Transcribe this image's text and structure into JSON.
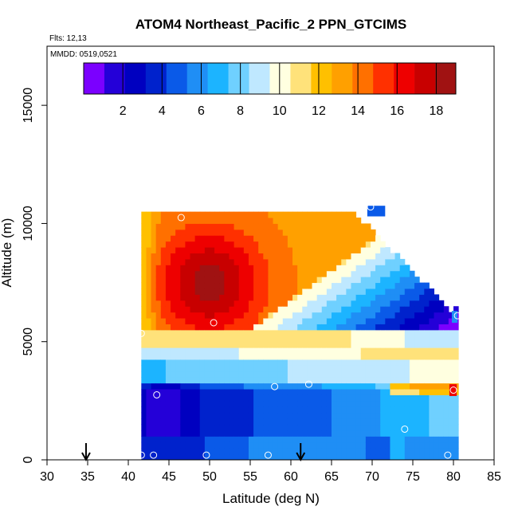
{
  "chart_data": {
    "type": "heatmap",
    "title": "ATOM4 Northeast_Pacific_2 PPN_GTCIMS",
    "flights_label": "Flts: 12,13",
    "dates_label": "MMDD: 0519,0521",
    "xlabel": "Latitude (deg N)",
    "ylabel": "Altitude (m)",
    "xlim": [
      30,
      85
    ],
    "ylim": [
      0,
      17500
    ],
    "x_ticks": [
      30,
      35,
      40,
      45,
      50,
      55,
      60,
      65,
      70,
      75,
      80,
      85
    ],
    "y_ticks": [
      0,
      5000,
      10000,
      15000
    ],
    "colorbar": {
      "range": [
        0,
        19
      ],
      "ticks": [
        2,
        4,
        6,
        8,
        10,
        12,
        14,
        16,
        18
      ],
      "colors": [
        "#7b00ff",
        "#2400d8",
        "#0000c0",
        "#0022cc",
        "#0a5ae8",
        "#1f8ef5",
        "#1cb4ff",
        "#6fd0ff",
        "#bfe8ff",
        "#ffffe0",
        "#ffe27a",
        "#ffc000",
        "#ffa000",
        "#ff7000",
        "#ff3000",
        "#ee0000",
        "#c80000",
        "#a01212"
      ]
    },
    "profile_latitudes": [
      41.6,
      80.0
    ],
    "field_description": "Altitude-latitude curtain, lat 41.5-80.5, alt 0-10500 m; low values near surface and 2-3 km at 42-60N, high values (15-18) aloft 5.5-10 km near 45-55N",
    "markers": [
      {
        "lat": 34.8,
        "label": "arrow"
      },
      {
        "lat": 61.2,
        "label": "arrow"
      }
    ],
    "sample_points": [
      {
        "lat": 41.6,
        "alt": 200
      },
      {
        "lat": 43.1,
        "alt": 200
      },
      {
        "lat": 49.6,
        "alt": 200
      },
      {
        "lat": 57.2,
        "alt": 200
      },
      {
        "lat": 79.3,
        "alt": 200
      },
      {
        "lat": 43.5,
        "alt": 2750
      },
      {
        "lat": 58.0,
        "alt": 3100
      },
      {
        "lat": 62.2,
        "alt": 3200
      },
      {
        "lat": 74.0,
        "alt": 1300
      },
      {
        "lat": 80.0,
        "alt": 2950
      },
      {
        "lat": 41.6,
        "alt": 5350
      },
      {
        "lat": 50.5,
        "alt": 5800
      },
      {
        "lat": 80.5,
        "alt": 6100
      },
      {
        "lat": 46.5,
        "alt": 10250
      },
      {
        "lat": 69.8,
        "alt": 10700
      }
    ]
  }
}
